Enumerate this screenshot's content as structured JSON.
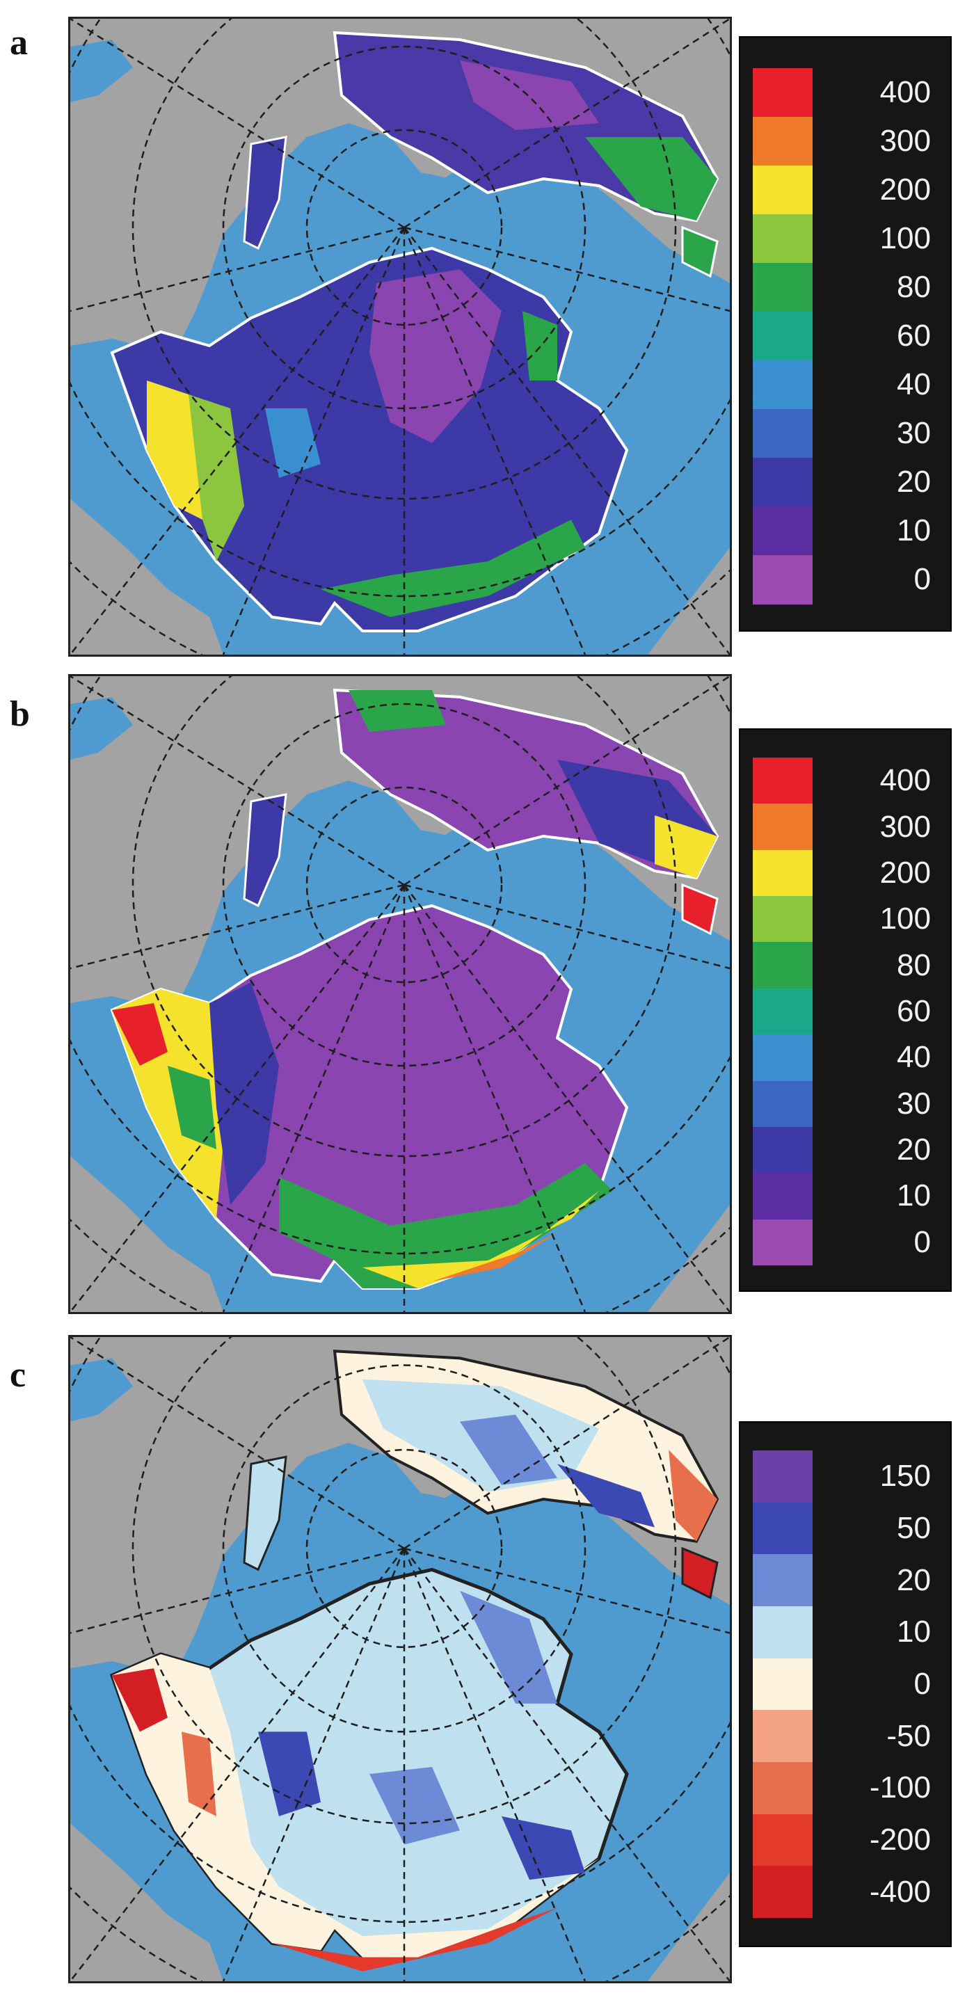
{
  "panels": [
    {
      "letter": "a",
      "legend": {
        "ticks": [
          "400",
          "300",
          "200",
          "100",
          "80",
          "60",
          "40",
          "30",
          "20",
          "10",
          "0"
        ],
        "colors": [
          "#e8202c",
          "#ee7a2a",
          "#f4e22c",
          "#8cc63e",
          "#2aa54a",
          "#19a88a",
          "#3a8fd0",
          "#3a68c0",
          "#3d3aa8",
          "#5a2ea0",
          "#9a4bb0"
        ]
      }
    },
    {
      "letter": "b",
      "legend": {
        "ticks": [
          "400",
          "300",
          "200",
          "100",
          "80",
          "60",
          "40",
          "30",
          "20",
          "10",
          "0"
        ],
        "colors": [
          "#e8202c",
          "#ee7a2a",
          "#f4e22c",
          "#8cc63e",
          "#2aa54a",
          "#19a88a",
          "#3a8fd0",
          "#3a68c0",
          "#3d3aa8",
          "#5a2ea0",
          "#9a4bb0"
        ]
      }
    },
    {
      "letter": "c",
      "legend": {
        "ticks": [
          "150",
          "50",
          "20",
          "10",
          "0",
          "-50",
          "-100",
          "-200",
          "-400"
        ],
        "colors": [
          "#6b3fa8",
          "#3c48b4",
          "#6d8ad6",
          "#bfe0ef",
          "#fdf3df",
          "#f2a283",
          "#e86f4c",
          "#e33a2c",
          "#d31f24"
        ]
      }
    }
  ],
  "map_colors": {
    "ocean": "#4f9bd0",
    "land": "#a3a3a3",
    "outline": "#ffffff",
    "graticule": "#1e1e1e"
  }
}
